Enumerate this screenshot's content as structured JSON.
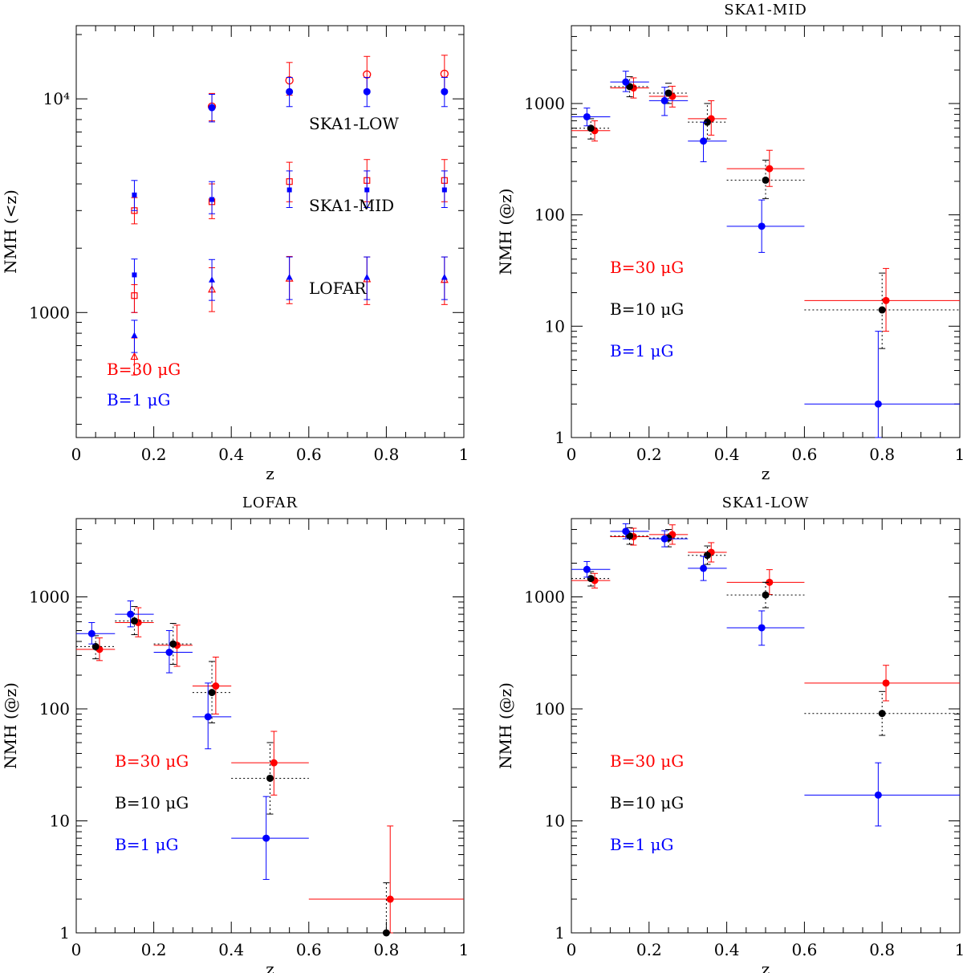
{
  "chart_data": [
    {
      "type": "scatter",
      "panel": "top-left",
      "title": "",
      "xlabel": "z",
      "ylabel": "NMH (<z)",
      "xlim": [
        0,
        1
      ],
      "ylim": [
        260,
        22000
      ],
      "yscale": "log",
      "x_ticks": [
        "0",
        "0.2",
        "0.4",
        "0.6",
        "0.8",
        "1"
      ],
      "y_ticks": [
        {
          "value": 1000,
          "label": "1000"
        },
        {
          "value": 10000,
          "label": "10⁴"
        }
      ],
      "annotations": [
        "SKA1-LOW",
        "SKA1-MID",
        "LOFAR"
      ],
      "legend": [
        {
          "label": "B=30 μG",
          "color": "#ff0000"
        },
        {
          "label": "B=1 μG",
          "color": "#0000ff"
        }
      ],
      "series": [
        {
          "name": "SKA1-LOW B=30 μG",
          "marker": "open-circle",
          "color": "#ff0000",
          "points": [
            {
              "x": 0.35,
              "y": 9200,
              "lo": 7900,
              "hi": 10600
            },
            {
              "x": 0.55,
              "y": 12200,
              "lo": 10400,
              "hi": 14800
            },
            {
              "x": 0.75,
              "y": 13000,
              "lo": 11000,
              "hi": 15800
            },
            {
              "x": 0.95,
              "y": 13100,
              "lo": 11000,
              "hi": 16000
            }
          ]
        },
        {
          "name": "SKA1-LOW B=1 μG",
          "marker": "filled-circle",
          "color": "#0000ff",
          "points": [
            {
              "x": 0.35,
              "y": 9100,
              "lo": 7800,
              "hi": 10500
            },
            {
              "x": 0.55,
              "y": 10800,
              "lo": 9200,
              "hi": 12600
            },
            {
              "x": 0.75,
              "y": 10800,
              "lo": 9200,
              "hi": 12600
            },
            {
              "x": 0.95,
              "y": 10800,
              "lo": 9200,
              "hi": 12600
            }
          ]
        },
        {
          "name": "SKA1-MID B=30 μG",
          "marker": "open-square",
          "color": "#ff0000",
          "points": [
            {
              "x": 0.15,
              "y": 3000,
              "lo": 2600,
              "hi": 3450
            },
            {
              "x": 0.35,
              "y": 3300,
              "lo": 2750,
              "hi": 4000
            },
            {
              "x": 0.55,
              "y": 4100,
              "lo": 3300,
              "hi": 5050
            },
            {
              "x": 0.75,
              "y": 4150,
              "lo": 3300,
              "hi": 5200
            },
            {
              "x": 0.95,
              "y": 4150,
              "lo": 3300,
              "hi": 5200
            }
          ]
        },
        {
          "name": "SKA1-MID B=1 μG",
          "marker": "filled-square",
          "color": "#0000ff",
          "points": [
            {
              "x": 0.15,
              "y": 3550,
              "lo": 3000,
              "hi": 4150
            },
            {
              "x": 0.35,
              "y": 3380,
              "lo": 2900,
              "hi": 4100
            },
            {
              "x": 0.55,
              "y": 3750,
              "lo": 3100,
              "hi": 4600
            },
            {
              "x": 0.75,
              "y": 3750,
              "lo": 3100,
              "hi": 4600
            },
            {
              "x": 0.95,
              "y": 3750,
              "lo": 3100,
              "hi": 4600
            }
          ]
        },
        {
          "name": "LOFAR B=30 μG",
          "marker": "open-triangle",
          "color": "#ff0000",
          "points": [
            {
              "x": 0.15,
              "y": 620,
              "lo": 510,
              "hi": 760
            },
            {
              "x": 0.35,
              "y": 1280,
              "lo": 1010,
              "hi": 1620
            },
            {
              "x": 0.55,
              "y": 1440,
              "lo": 1100,
              "hi": 1830
            },
            {
              "x": 0.75,
              "y": 1430,
              "lo": 1090,
              "hi": 1820
            },
            {
              "x": 0.95,
              "y": 1420,
              "lo": 1090,
              "hi": 1820
            }
          ]
        },
        {
          "name": "LOFAR B=1 μG",
          "marker": "filled-triangle",
          "color": "#0000ff",
          "points": [
            {
              "x": 0.15,
              "y": 780,
              "lo": 650,
              "hi": 920
            },
            {
              "x": 0.35,
              "y": 1420,
              "lo": 1140,
              "hi": 1770
            },
            {
              "x": 0.55,
              "y": 1460,
              "lo": 1150,
              "hi": 1820
            },
            {
              "x": 0.75,
              "y": 1460,
              "lo": 1150,
              "hi": 1820
            },
            {
              "x": 0.95,
              "y": 1460,
              "lo": 1150,
              "hi": 1820
            }
          ]
        },
        {
          "name": "LOFAR B=1 μG square (z=0.15)",
          "marker": "filled-square",
          "color": "#0000ff",
          "points": [
            {
              "x": 0.15,
              "y": 1500,
              "lo": 1000,
              "hi": 1780
            }
          ]
        },
        {
          "name": "LOFAR B=30 μG square (z=0.15)",
          "marker": "open-square",
          "color": "#ff0000",
          "points": [
            {
              "x": 0.15,
              "y": 1200,
              "lo": 1000,
              "hi": 1350
            }
          ]
        }
      ]
    },
    {
      "type": "scatter",
      "panel": "top-right",
      "title": "SKA1-MID",
      "xlabel": "z",
      "ylabel": "NMH (@z)",
      "xlim": [
        0,
        1
      ],
      "ylim": [
        1,
        5000
      ],
      "yscale": "log",
      "x_ticks": [
        "0",
        "0.2",
        "0.4",
        "0.6",
        "0.8",
        "1"
      ],
      "y_ticks": [
        {
          "value": 1,
          "label": "1"
        },
        {
          "value": 10,
          "label": "10"
        },
        {
          "value": 100,
          "label": "100"
        },
        {
          "value": 1000,
          "label": "1000"
        }
      ],
      "legend": [
        {
          "label": "B=30 μG",
          "color": "#ff0000"
        },
        {
          "label": "B=10 μG",
          "color": "#000000"
        },
        {
          "label": "B=1 μG",
          "color": "#0000ff"
        }
      ],
      "series": [
        {
          "name": "B=30 μG",
          "color": "#ff0000",
          "dash": false,
          "points": [
            {
              "x": 0.06,
              "x0": 0.0,
              "x1": 0.1,
              "y": 570,
              "lo": 460,
              "hi": 700
            },
            {
              "x": 0.16,
              "x0": 0.1,
              "x1": 0.2,
              "y": 1380,
              "lo": 1120,
              "hi": 1700
            },
            {
              "x": 0.26,
              "x0": 0.2,
              "x1": 0.3,
              "y": 1160,
              "lo": 930,
              "hi": 1430
            },
            {
              "x": 0.36,
              "x0": 0.3,
              "x1": 0.4,
              "y": 730,
              "lo": 520,
              "hi": 1060
            },
            {
              "x": 0.51,
              "x0": 0.4,
              "x1": 0.6,
              "y": 260,
              "lo": 180,
              "hi": 380
            },
            {
              "x": 0.81,
              "x0": 0.6,
              "x1": 1.0,
              "y": 17,
              "lo": 9,
              "hi": 33
            }
          ]
        },
        {
          "name": "B=10 μG",
          "color": "#000000",
          "dash": true,
          "points": [
            {
              "x": 0.05,
              "x0": 0.0,
              "x1": 0.1,
              "y": 600,
              "lo": 480,
              "hi": 730
            },
            {
              "x": 0.15,
              "x0": 0.1,
              "x1": 0.2,
              "y": 1420,
              "lo": 1150,
              "hi": 1740
            },
            {
              "x": 0.25,
              "x0": 0.2,
              "x1": 0.3,
              "y": 1240,
              "lo": 1000,
              "hi": 1520
            },
            {
              "x": 0.35,
              "x0": 0.3,
              "x1": 0.4,
              "y": 680,
              "lo": 480,
              "hi": 1000
            },
            {
              "x": 0.5,
              "x0": 0.4,
              "x1": 0.6,
              "y": 205,
              "lo": 140,
              "hi": 310
            },
            {
              "x": 0.8,
              "x0": 0.6,
              "x1": 1.0,
              "y": 14,
              "lo": 6.3,
              "hi": 30
            }
          ]
        },
        {
          "name": "B=1 μG",
          "color": "#0000ff",
          "dash": false,
          "points": [
            {
              "x": 0.04,
              "x0": 0.0,
              "x1": 0.1,
              "y": 760,
              "lo": 630,
              "hi": 910
            },
            {
              "x": 0.14,
              "x0": 0.1,
              "x1": 0.2,
              "y": 1560,
              "lo": 1280,
              "hi": 1950
            },
            {
              "x": 0.24,
              "x0": 0.2,
              "x1": 0.3,
              "y": 1060,
              "lo": 780,
              "hi": 1400
            },
            {
              "x": 0.34,
              "x0": 0.3,
              "x1": 0.4,
              "y": 460,
              "lo": 300,
              "hi": 680
            },
            {
              "x": 0.49,
              "x0": 0.4,
              "x1": 0.6,
              "y": 79,
              "lo": 46,
              "hi": 136
            },
            {
              "x": 0.79,
              "x0": 0.6,
              "x1": 1.0,
              "y": 2,
              "lo": 1,
              "hi": 9
            }
          ]
        }
      ]
    },
    {
      "type": "scatter",
      "panel": "bottom-left",
      "title": "LOFAR",
      "xlabel": "z",
      "ylabel": "NMH (@z)",
      "xlim": [
        0,
        1
      ],
      "ylim": [
        1,
        5000
      ],
      "yscale": "log",
      "x_ticks": [
        "0",
        "0.2",
        "0.4",
        "0.6",
        "0.8",
        "1"
      ],
      "y_ticks": [
        {
          "value": 1,
          "label": "1"
        },
        {
          "value": 10,
          "label": "10"
        },
        {
          "value": 100,
          "label": "100"
        },
        {
          "value": 1000,
          "label": "1000"
        }
      ],
      "legend": [
        {
          "label": "B=30 μG",
          "color": "#ff0000"
        },
        {
          "label": "B=10 μG",
          "color": "#000000"
        },
        {
          "label": "B=1 μG",
          "color": "#0000ff"
        }
      ],
      "series": [
        {
          "name": "B=30 μG",
          "color": "#ff0000",
          "dash": false,
          "points": [
            {
              "x": 0.06,
              "x0": 0.0,
              "x1": 0.1,
              "y": 340,
              "lo": 270,
              "hi": 430
            },
            {
              "x": 0.16,
              "x0": 0.1,
              "x1": 0.2,
              "y": 590,
              "lo": 440,
              "hi": 800
            },
            {
              "x": 0.26,
              "x0": 0.2,
              "x1": 0.3,
              "y": 370,
              "lo": 240,
              "hi": 560
            },
            {
              "x": 0.36,
              "x0": 0.3,
              "x1": 0.4,
              "y": 160,
              "lo": 90,
              "hi": 290
            },
            {
              "x": 0.51,
              "x0": 0.4,
              "x1": 0.6,
              "y": 33,
              "lo": 17,
              "hi": 63
            },
            {
              "x": 0.81,
              "x0": 0.6,
              "x1": 1.0,
              "y": 2,
              "lo": 1,
              "hi": 9
            }
          ]
        },
        {
          "name": "B=10 μG",
          "color": "#000000",
          "dash": true,
          "points": [
            {
              "x": 0.05,
              "x0": 0.0,
              "x1": 0.1,
              "y": 360,
              "lo": 280,
              "hi": 450
            },
            {
              "x": 0.15,
              "x0": 0.1,
              "x1": 0.2,
              "y": 610,
              "lo": 460,
              "hi": 820
            },
            {
              "x": 0.25,
              "x0": 0.2,
              "x1": 0.3,
              "y": 380,
              "lo": 250,
              "hi": 580
            },
            {
              "x": 0.35,
              "x0": 0.3,
              "x1": 0.4,
              "y": 140,
              "lo": 75,
              "hi": 265
            },
            {
              "x": 0.5,
              "x0": 0.4,
              "x1": 0.6,
              "y": 24,
              "lo": 11.5,
              "hi": 50
            },
            {
              "x": 0.8,
              "x0": 0.6,
              "x1": 1.0,
              "y": 1,
              "lo": 1,
              "hi": 2.8
            }
          ]
        },
        {
          "name": "B=1 μG",
          "color": "#0000ff",
          "dash": false,
          "points": [
            {
              "x": 0.04,
              "x0": 0.0,
              "x1": 0.1,
              "y": 470,
              "lo": 380,
              "hi": 590
            },
            {
              "x": 0.14,
              "x0": 0.1,
              "x1": 0.2,
              "y": 700,
              "lo": 540,
              "hi": 920
            },
            {
              "x": 0.24,
              "x0": 0.2,
              "x1": 0.3,
              "y": 320,
              "lo": 210,
              "hi": 500
            },
            {
              "x": 0.34,
              "x0": 0.3,
              "x1": 0.4,
              "y": 85,
              "lo": 44,
              "hi": 170
            },
            {
              "x": 0.49,
              "x0": 0.4,
              "x1": 0.6,
              "y": 7,
              "lo": 3,
              "hi": 16.5
            }
          ]
        }
      ]
    },
    {
      "type": "scatter",
      "panel": "bottom-right",
      "title": "SKA1-LOW",
      "xlabel": "z",
      "ylabel": "NMH (@z)",
      "xlim": [
        0,
        1
      ],
      "ylim": [
        1,
        5000
      ],
      "yscale": "log",
      "x_ticks": [
        "0",
        "0.2",
        "0.4",
        "0.6",
        "0.8",
        "1"
      ],
      "y_ticks": [
        {
          "value": 1,
          "label": "1"
        },
        {
          "value": 10,
          "label": "10"
        },
        {
          "value": 100,
          "label": "100"
        },
        {
          "value": 1000,
          "label": "1000"
        }
      ],
      "legend": [
        {
          "label": "B=30 μG",
          "color": "#ff0000"
        },
        {
          "label": "B=10 μG",
          "color": "#000000"
        },
        {
          "label": "B=1 μG",
          "color": "#0000ff"
        }
      ],
      "series": [
        {
          "name": "B=30 μG",
          "color": "#ff0000",
          "dash": false,
          "points": [
            {
              "x": 0.06,
              "x0": 0.0,
              "x1": 0.1,
              "y": 1400,
              "lo": 1200,
              "hi": 1620
            },
            {
              "x": 0.16,
              "x0": 0.1,
              "x1": 0.2,
              "y": 3450,
              "lo": 2900,
              "hi": 4100
            },
            {
              "x": 0.26,
              "x0": 0.2,
              "x1": 0.3,
              "y": 3600,
              "lo": 2950,
              "hi": 4400
            },
            {
              "x": 0.36,
              "x0": 0.3,
              "x1": 0.4,
              "y": 2500,
              "lo": 2050,
              "hi": 3050
            },
            {
              "x": 0.51,
              "x0": 0.4,
              "x1": 0.6,
              "y": 1350,
              "lo": 1050,
              "hi": 1750
            },
            {
              "x": 0.81,
              "x0": 0.6,
              "x1": 1.0,
              "y": 170,
              "lo": 118,
              "hi": 245
            }
          ]
        },
        {
          "name": "B=10 μG",
          "color": "#000000",
          "dash": true,
          "points": [
            {
              "x": 0.05,
              "x0": 0.0,
              "x1": 0.1,
              "y": 1460,
              "lo": 1250,
              "hi": 1680
            },
            {
              "x": 0.15,
              "x0": 0.1,
              "x1": 0.2,
              "y": 3500,
              "lo": 2950,
              "hi": 4150
            },
            {
              "x": 0.25,
              "x0": 0.2,
              "x1": 0.3,
              "y": 3350,
              "lo": 2800,
              "hi": 4000
            },
            {
              "x": 0.35,
              "x0": 0.3,
              "x1": 0.4,
              "y": 2350,
              "lo": 1950,
              "hi": 2850
            },
            {
              "x": 0.5,
              "x0": 0.4,
              "x1": 0.6,
              "y": 1040,
              "lo": 800,
              "hi": 1350
            },
            {
              "x": 0.8,
              "x0": 0.6,
              "x1": 1.0,
              "y": 91,
              "lo": 58,
              "hi": 143
            }
          ]
        },
        {
          "name": "B=1 μG",
          "color": "#0000ff",
          "dash": false,
          "points": [
            {
              "x": 0.04,
              "x0": 0.0,
              "x1": 0.1,
              "y": 1760,
              "lo": 1500,
              "hi": 2070
            },
            {
              "x": 0.14,
              "x0": 0.1,
              "x1": 0.2,
              "y": 3850,
              "lo": 3300,
              "hi": 4500
            },
            {
              "x": 0.24,
              "x0": 0.2,
              "x1": 0.3,
              "y": 3300,
              "lo": 2800,
              "hi": 3900
            },
            {
              "x": 0.34,
              "x0": 0.3,
              "x1": 0.4,
              "y": 1800,
              "lo": 1400,
              "hi": 2300
            },
            {
              "x": 0.49,
              "x0": 0.4,
              "x1": 0.6,
              "y": 530,
              "lo": 370,
              "hi": 750
            },
            {
              "x": 0.79,
              "x0": 0.6,
              "x1": 1.0,
              "y": 17,
              "lo": 9,
              "hi": 33
            }
          ]
        }
      ]
    }
  ]
}
